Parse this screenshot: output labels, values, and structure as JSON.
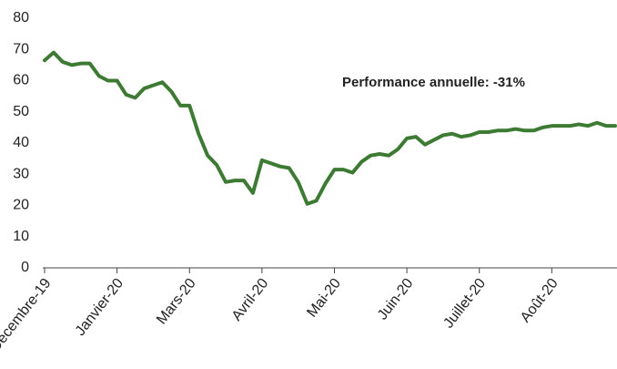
{
  "chart_data": {
    "type": "line",
    "annotation": "Performance annuelle: -31%",
    "categories": [
      "Décembre-19",
      null,
      null,
      null,
      null,
      null,
      null,
      null,
      "Janvier-20",
      null,
      null,
      null,
      null,
      null,
      null,
      null,
      "Mars-20",
      null,
      null,
      null,
      null,
      null,
      null,
      null,
      "Avril-20",
      null,
      null,
      null,
      null,
      null,
      null,
      null,
      "Mai-20",
      null,
      null,
      null,
      null,
      null,
      null,
      null,
      "Juin-20",
      null,
      null,
      null,
      null,
      null,
      null,
      null,
      "Juillet-20",
      null,
      null,
      null,
      null,
      null,
      null,
      null,
      "Août-20",
      null,
      null,
      null,
      null,
      null,
      null,
      null
    ],
    "values": [
      66.5,
      69,
      66,
      65,
      65.5,
      65.5,
      61.5,
      60,
      60,
      55.5,
      54.5,
      57.5,
      58.5,
      59.5,
      56.5,
      52,
      52,
      43,
      36,
      33,
      27.5,
      28,
      28,
      24,
      34.5,
      33.5,
      32.5,
      32,
      27.5,
      20.5,
      21.5,
      27,
      31.5,
      31.5,
      30.5,
      34,
      36,
      36.5,
      36,
      38,
      41.5,
      42,
      39.5,
      41,
      42.5,
      43,
      42,
      42.5,
      43.5,
      43.5,
      44,
      44,
      44.5,
      44,
      44,
      45,
      45.5,
      45.5,
      45.5,
      46,
      45.5,
      46.5,
      45.5,
      45.5
    ],
    "color": "#3d7a33",
    "ylim": [
      0,
      80
    ],
    "yticks": [
      0,
      10,
      20,
      30,
      40,
      50,
      60,
      70,
      80
    ],
    "grid": false
  }
}
